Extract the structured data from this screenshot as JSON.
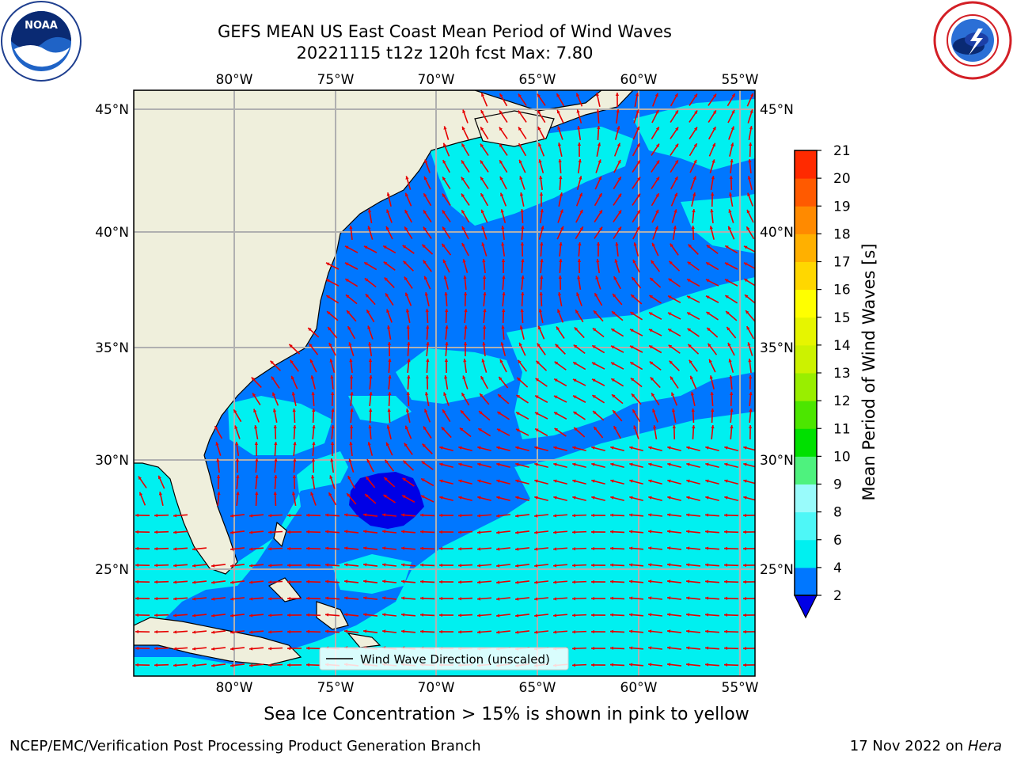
{
  "header": {
    "title_line1": "GEFS MEAN US East Coast Mean Period of Wind Waves",
    "title_line2": "20221115 t12z 120h fcst   Max: 7.80"
  },
  "map": {
    "lon_labels": [
      "80°W",
      "75°W",
      "70°W",
      "65°W",
      "60°W",
      "55°W"
    ],
    "lat_labels": [
      "45°N",
      "40°N",
      "35°N",
      "30°N",
      "25°N"
    ],
    "legend_label": "Wind Wave Direction (unscaled)",
    "colors": {
      "land": "#efefdc",
      "period_0_2": "#0000e6",
      "period_2_4": "#0077ff",
      "period_4_6": "#00f0f0",
      "period_6_8": "#4ef7f7",
      "arrow": "#e60000"
    }
  },
  "colorbar": {
    "label": "Mean Period of Wind Waves [s]",
    "ticks": [
      "2",
      "4",
      "6",
      "8",
      "9",
      "10",
      "11",
      "12",
      "13",
      "14",
      "15",
      "16",
      "17",
      "18",
      "19",
      "20",
      "21"
    ],
    "colors": [
      "#0077ff",
      "#00f0f0",
      "#4ef7f7",
      "#99fbfb",
      "#4ef27e",
      "#00e000",
      "#4ce600",
      "#99ee00",
      "#ccf200",
      "#e6f500",
      "#ffff00",
      "#ffd700",
      "#ffb000",
      "#ff8a00",
      "#ff5a00",
      "#ff2a00"
    ],
    "under_color": "#0000e6"
  },
  "footer": {
    "note": "Sea Ice Concentration > 15% is shown in pink to yellow",
    "credit": "NCEP/EMC/Verification Post Processing Product Generation Branch",
    "date_prefix": "17 Nov 2022 on ",
    "date_host": "Hera"
  }
}
